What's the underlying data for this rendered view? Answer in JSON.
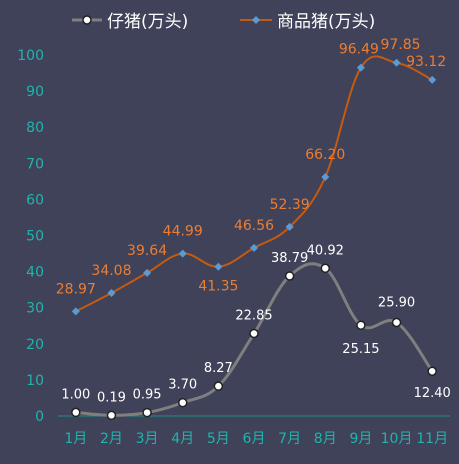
{
  "chart_data": {
    "type": "line",
    "categories": [
      "1月",
      "2月",
      "3月",
      "4月",
      "5月",
      "6月",
      "7月",
      "8月",
      "9月",
      "10月",
      "11月"
    ],
    "series": [
      {
        "name": "仔猪(万头)",
        "values": [
          1.0,
          0.19,
          0.95,
          3.7,
          8.27,
          22.85,
          38.79,
          40.92,
          25.15,
          25.9,
          12.4
        ],
        "labels": [
          "1.00",
          "0.19",
          "0.95",
          "3.70",
          "8.27",
          "22.85",
          "38.79",
          "40.92",
          "25.15",
          "25.90",
          "12.40"
        ],
        "color": "#7f7f7f",
        "label_color": "#ffffff",
        "marker": "circle"
      },
      {
        "name": "商品猪(万头)",
        "values": [
          28.97,
          34.08,
          39.64,
          44.99,
          41.35,
          46.56,
          52.39,
          66.2,
          96.49,
          97.85,
          93.12
        ],
        "labels": [
          "28.97",
          "34.08",
          "39.64",
          "44.99",
          "41.35",
          "46.56",
          "52.39",
          "66.20",
          "96.49",
          "97.85",
          "93.12"
        ],
        "color": "#c55a11",
        "marker_color": "#5b9bd5",
        "label_color": "#ed7d31",
        "marker": "diamond"
      }
    ],
    "ylim": [
      0,
      100
    ],
    "yticks": [
      "0",
      "10",
      "20",
      "30",
      "40",
      "50",
      "60",
      "70",
      "80",
      "90",
      "100"
    ],
    "title": "",
    "xlabel": "",
    "ylabel": "",
    "grid": false,
    "legend_position": "top",
    "tick_color": "#1fb5ad"
  }
}
